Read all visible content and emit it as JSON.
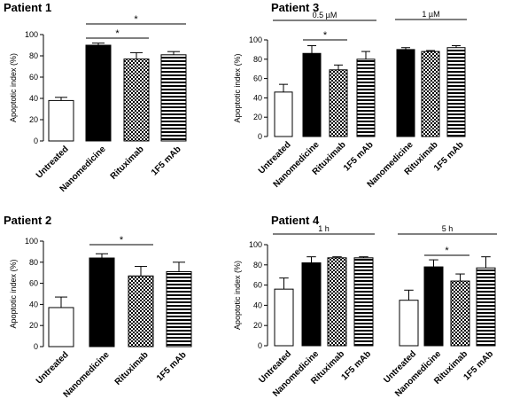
{
  "chart_data": [
    {
      "type": "bar",
      "title": "Patient 1",
      "ylabel": "Apoptotic index (%)",
      "ylim": [
        0,
        100
      ],
      "yticks": [
        0,
        20,
        40,
        60,
        80,
        100
      ],
      "categories": [
        "Untreated",
        "Nanomedicine",
        "Rituximab",
        "1F5 mAb"
      ],
      "values": [
        38,
        90,
        77,
        81
      ],
      "errors": [
        3,
        2,
        6,
        3
      ],
      "fills": [
        "white",
        "black",
        "checker",
        "hstripes"
      ],
      "significance": [
        {
          "from": 1,
          "to": 2,
          "label": "*"
        },
        {
          "from": 1,
          "to": 3,
          "label": "*"
        }
      ]
    },
    {
      "type": "bar",
      "title": "Patient 3",
      "ylabel": "Apoptotic index (%)",
      "ylim": [
        0,
        100
      ],
      "yticks": [
        0,
        20,
        40,
        60,
        80,
        100
      ],
      "groups": [
        {
          "label": "0.5 µM",
          "categories": [
            "Untreated",
            "Nanomedicine",
            "Rituximab",
            "1F5 mAb"
          ],
          "values": [
            46,
            86,
            69,
            80
          ],
          "errors": [
            8,
            8,
            5,
            8
          ],
          "fills": [
            "white",
            "black",
            "checker",
            "hstripes"
          ]
        },
        {
          "label": "1 µM",
          "categories": [
            "Nanomedicine",
            "Rituximab",
            "1F5 mAb"
          ],
          "values": [
            90,
            88,
            92
          ],
          "errors": [
            2,
            1,
            2
          ],
          "fills": [
            "black",
            "checker",
            "hstripes"
          ]
        }
      ],
      "significance": [
        {
          "group": 0,
          "from": 1,
          "to": 2,
          "label": "*"
        }
      ]
    },
    {
      "type": "bar",
      "title": "Patient 2",
      "ylabel": "Apoptotic index (%)",
      "ylim": [
        0,
        100
      ],
      "yticks": [
        0,
        20,
        40,
        60,
        80,
        100
      ],
      "categories": [
        "Untreated",
        "Nanomedicine",
        "Rituximab",
        "1F5 mAb"
      ],
      "values": [
        37,
        84,
        67,
        71
      ],
      "errors": [
        10,
        4,
        9,
        9
      ],
      "fills": [
        "white",
        "black",
        "checker",
        "hstripes"
      ],
      "significance": [
        {
          "from": 1,
          "to": 2,
          "label": "*"
        }
      ]
    },
    {
      "type": "bar",
      "title": "Patient 4",
      "ylabel": "Apoptotic index (%)",
      "ylim": [
        0,
        100
      ],
      "yticks": [
        0,
        20,
        40,
        60,
        80,
        100
      ],
      "groups": [
        {
          "label": "1 h",
          "categories": [
            "Untreated",
            "Nanomedicine",
            "Rituximab",
            "1F5 mAb"
          ],
          "values": [
            56,
            82,
            87,
            87
          ],
          "errors": [
            11,
            6,
            1,
            1
          ],
          "fills": [
            "white",
            "black",
            "checker",
            "hstripes"
          ]
        },
        {
          "label": "5 h",
          "categories": [
            "Untreated",
            "Nanomedicine",
            "Rituximab",
            "1F5 mAb"
          ],
          "values": [
            45,
            78,
            64,
            77
          ],
          "errors": [
            10,
            7,
            7,
            11
          ],
          "fills": [
            "white",
            "black",
            "checker",
            "hstripes"
          ]
        }
      ],
      "significance": [
        {
          "group": 1,
          "from": 1,
          "to": 2,
          "label": "*"
        }
      ]
    }
  ]
}
